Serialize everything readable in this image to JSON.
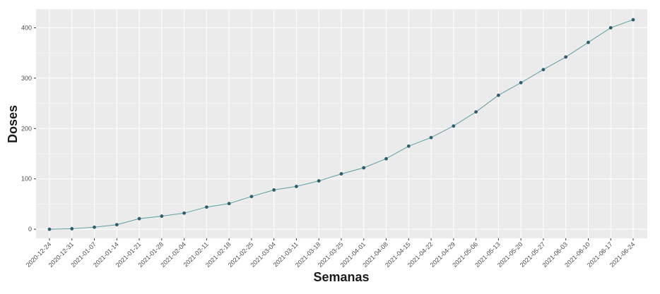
{
  "chart_data": {
    "type": "line",
    "xlabel": "Semanas",
    "ylabel": "Doses",
    "x": [
      "2020-12-24",
      "2020-12-31",
      "2021-01-07",
      "2021-01-14",
      "2021-01-21",
      "2021-01-28",
      "2021-02-04",
      "2021-02-11",
      "2021-02-18",
      "2021-02-25",
      "2021-03-04",
      "2021-03-11",
      "2021-03-18",
      "2021-03-25",
      "2021-04-01",
      "2021-04-08",
      "2021-04-15",
      "2021-04-22",
      "2021-04-29",
      "2021-05-06",
      "2021-05-13",
      "2021-05-20",
      "2021-05-27",
      "2021-06-03",
      "2021-06-10",
      "2021-06-17",
      "2021-06-24"
    ],
    "series": [
      {
        "values": [
          0,
          1,
          4,
          9,
          21,
          26,
          32,
          44,
          51,
          65,
          78,
          85,
          96,
          110,
          122,
          140,
          165,
          182,
          205,
          233,
          266,
          291,
          317,
          342,
          371,
          400,
          416
        ]
      }
    ],
    "ylim": [
      -18,
      437
    ],
    "yticks": [
      0,
      100,
      200,
      300,
      400
    ],
    "grid": true,
    "legend": "none",
    "colors": {
      "panel": "#ebebeb",
      "grid_major": "#ffffff",
      "line": "#5f9ea0",
      "point": "#2f5d6e"
    }
  }
}
